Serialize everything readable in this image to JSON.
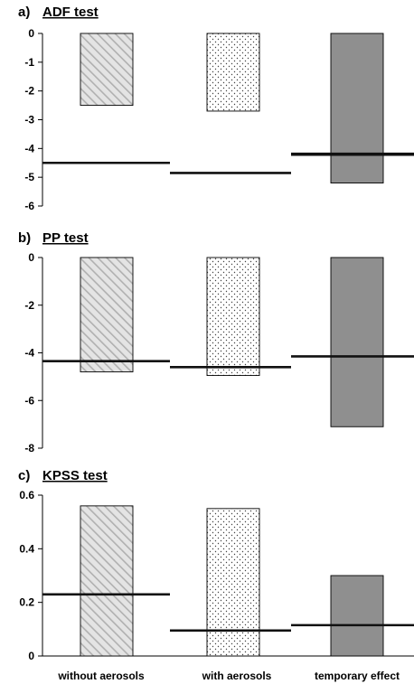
{
  "chart_data": [
    {
      "type": "bar",
      "panel_letter": "a)",
      "title": "ADF test",
      "categories": [
        "without aerosols",
        "with aerosols",
        "temporary effect"
      ],
      "values": [
        -2.5,
        -2.7,
        -5.2
      ],
      "critical_values": [
        -4.5,
        -4.85,
        -4.2
      ],
      "ylim": [
        -6,
        0
      ],
      "yticks": [
        "0",
        "-1",
        "-2",
        "-3",
        "-4",
        "-5",
        "-6"
      ],
      "ytick_values": [
        0,
        -1,
        -2,
        -3,
        -4,
        -5,
        -6
      ],
      "xlabel": "",
      "ylabel": "",
      "grid": false,
      "legend": "none"
    },
    {
      "type": "bar",
      "panel_letter": "b)",
      "title": "PP test",
      "categories": [
        "without aerosols",
        "with aerosols",
        "temporary effect"
      ],
      "values": [
        -4.8,
        -4.95,
        -7.1
      ],
      "critical_values": [
        -4.35,
        -4.6,
        -4.15
      ],
      "ylim": [
        -8,
        0
      ],
      "yticks": [
        "0",
        "-2",
        "-4",
        "-6",
        "-8"
      ],
      "ytick_values": [
        0,
        -2,
        -4,
        -6,
        -8
      ],
      "xlabel": "",
      "ylabel": "",
      "grid": false,
      "legend": "none"
    },
    {
      "type": "bar",
      "panel_letter": "c)",
      "title": "KPSS test",
      "categories": [
        "without aerosols",
        "with aerosols",
        "temporary effect"
      ],
      "values": [
        0.56,
        0.55,
        0.3
      ],
      "critical_values": [
        0.23,
        0.095,
        0.115
      ],
      "ylim": [
        0,
        0.6
      ],
      "yticks": [
        "0",
        "0.2",
        "0.4",
        "0.6"
      ],
      "ytick_values": [
        0,
        0.2,
        0.4,
        0.6
      ],
      "xlabel": "",
      "ylabel": "",
      "grid": false,
      "legend": "none"
    }
  ],
  "x_category_labels": [
    "without aerosols",
    "with aerosols",
    "temporary effect"
  ],
  "colors": {
    "hatch_stroke": "#b5b5b5",
    "hatch_bg": "#e4e4e4",
    "dot_color": "#444444",
    "solid_fill": "#8f8f8f",
    "axis": "#000000",
    "critical_line": "#111111"
  }
}
